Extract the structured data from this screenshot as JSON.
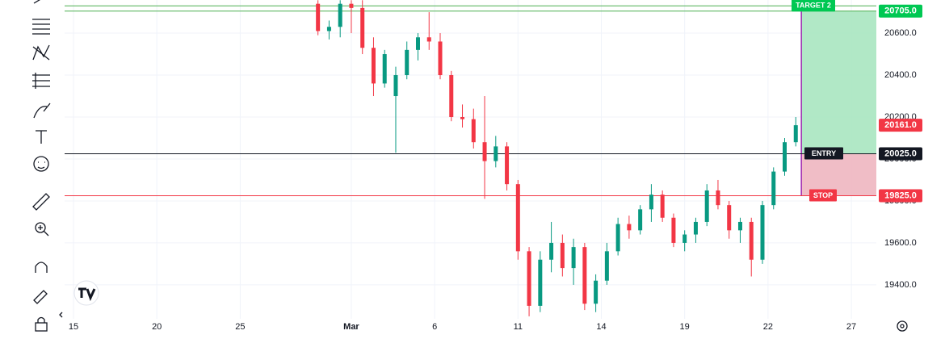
{
  "chart_data": {
    "type": "candlestick",
    "up_color": "#089981",
    "down_color": "#f23645",
    "grid": true,
    "x": [
      8.8,
      9.2,
      9.6,
      10.0,
      10.4,
      10.8,
      11.2,
      11.6,
      12.0,
      12.4,
      12.8,
      13.2,
      13.6,
      14.0,
      14.4,
      14.8,
      15.2,
      15.6,
      16.0,
      16.4,
      16.8,
      17.2,
      17.6,
      18.0,
      18.4,
      18.8,
      19.2,
      19.6,
      20.0,
      20.4,
      20.8,
      21.2,
      21.6,
      22.0,
      22.4,
      22.8,
      23.2,
      23.6,
      24.0,
      24.4,
      24.8,
      25.2,
      25.6,
      26.0
    ],
    "open": [
      20740,
      20610,
      20630,
      20740,
      20720,
      20530,
      20360,
      20300,
      20400,
      20520,
      20580,
      20560,
      20400,
      20200,
      20190,
      20080,
      19990,
      20060,
      19880,
      19560,
      19300,
      19520,
      19600,
      19480,
      19580,
      19310,
      19420,
      19560,
      19690,
      19660,
      19760,
      19830,
      19720,
      19600,
      19640,
      19700,
      19850,
      19780,
      19660,
      19700,
      19520,
      19780,
      19940,
      20080
    ],
    "high": [
      20757,
      20660,
      20757,
      20757,
      20757,
      20580,
      20520,
      20440,
      20560,
      20600,
      20700,
      20600,
      20420,
      20260,
      20240,
      20300,
      20110,
      20080,
      19900,
      19580,
      19560,
      19700,
      19640,
      19620,
      19600,
      19450,
      19600,
      19720,
      19730,
      19780,
      19880,
      19850,
      19740,
      19660,
      19720,
      19880,
      19900,
      19800,
      19720,
      19720,
      19800,
      19960,
      20100,
      20200
    ],
    "low": [
      20590,
      20570,
      20580,
      20600,
      20500,
      20300,
      20340,
      20030,
      20380,
      20470,
      20520,
      20380,
      20180,
      20150,
      20050,
      19810,
      19960,
      19850,
      19520,
      19250,
      19270,
      19460,
      19440,
      19400,
      19280,
      19270,
      19400,
      19540,
      19620,
      19640,
      19700,
      19700,
      19580,
      19560,
      19600,
      19680,
      19760,
      19620,
      19600,
      19440,
      19500,
      19760,
      19920,
      20060
    ],
    "close": [
      20610,
      20630,
      20740,
      20720,
      20530,
      20360,
      20500,
      20400,
      20520,
      20580,
      20560,
      20400,
      20200,
      20190,
      20080,
      19990,
      20060,
      19880,
      19560,
      19300,
      19520,
      19600,
      19480,
      19580,
      19310,
      19420,
      19560,
      19690,
      19660,
      19760,
      19830,
      19720,
      19600,
      19640,
      19700,
      19850,
      19780,
      19660,
      19700,
      19520,
      19780,
      19940,
      20080,
      20161
    ],
    "xlim": [
      -0.32,
      28.9
    ],
    "xticks": [
      {
        "value": 0,
        "label": "15"
      },
      {
        "value": 3,
        "label": "20"
      },
      {
        "value": 6,
        "label": "25"
      },
      {
        "value": 10,
        "label": "Mar"
      },
      {
        "value": 13,
        "label": "6"
      },
      {
        "value": 16,
        "label": "11"
      },
      {
        "value": 19,
        "label": "14"
      },
      {
        "value": 22,
        "label": "19"
      },
      {
        "value": 25,
        "label": "22"
      },
      {
        "value": 28,
        "label": "27"
      }
    ],
    "ylim": [
      19238,
      20758
    ],
    "yticks": [
      {
        "value": 19400,
        "label": "19400.0"
      },
      {
        "value": 19600,
        "label": "19600.0"
      },
      {
        "value": 19800,
        "label": "19800.0"
      },
      {
        "value": 20000,
        "label": "20000.0"
      },
      {
        "value": 20200,
        "label": "20200.0"
      },
      {
        "value": 20400,
        "label": "20400.0"
      },
      {
        "value": 20600,
        "label": "20600.0"
      }
    ],
    "lines": [
      {
        "value": 20730,
        "color": "#4caf50"
      },
      {
        "value": 20705,
        "color": "#4caf50"
      },
      {
        "value": 20025,
        "color": "#131722"
      },
      {
        "value": 19825,
        "color": "#f23645"
      }
    ],
    "position": {
      "x_start": 26.2,
      "target": 20705,
      "entry": 20025,
      "stop": 19825
    },
    "tags": [
      {
        "text": "TARGET 2",
        "value": 20730,
        "color": "#00c853"
      },
      {
        "text": "ENTRY",
        "value": 20025,
        "color": "#131722"
      },
      {
        "text": "STOP",
        "value": 19825,
        "color": "#f23645"
      }
    ],
    "price_labels": [
      {
        "value": 20705,
        "label": "20705.0",
        "color": "#00c853"
      },
      {
        "value": 20161,
        "label": "20161.0",
        "color": "#f23645"
      },
      {
        "value": 20025,
        "label": "20025.0",
        "color": "#131722"
      },
      {
        "value": 19825,
        "label": "19825.0",
        "color": "#f23645"
      }
    ]
  }
}
